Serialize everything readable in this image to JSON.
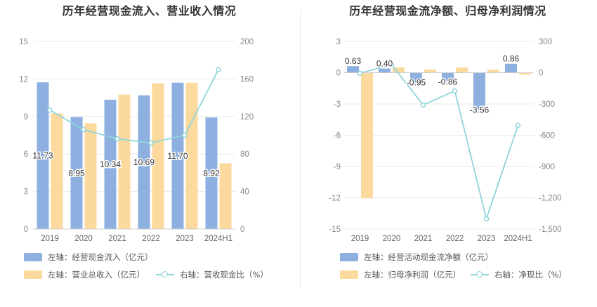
{
  "chart_data": [
    {
      "type": "bar",
      "title": "历年经营现金流入、营业收入情况",
      "categories": [
        "2019",
        "2020",
        "2021",
        "2022",
        "2023",
        "2024H1"
      ],
      "left_axis": {
        "min": 0,
        "max": 15,
        "ticks": [
          0,
          3,
          6,
          9,
          12,
          15
        ]
      },
      "right_axis": {
        "min": 0,
        "max": 200,
        "ticks": [
          0,
          40,
          80,
          120,
          160,
          200
        ]
      },
      "series": [
        {
          "name": "左轴：经营现金流入（亿元）",
          "axis": "left",
          "kind": "bar",
          "color": "#8eb0e0",
          "values": [
            11.73,
            8.95,
            10.34,
            10.69,
            11.7,
            8.92
          ],
          "labels": [
            "11.73",
            "8.95",
            "10.34",
            "10.69",
            "11.70",
            "8.92"
          ]
        },
        {
          "name": "左轴：营业总收入（亿元）",
          "axis": "left",
          "kind": "bar",
          "color": "#fcd99c",
          "values": [
            9.25,
            8.45,
            10.75,
            11.65,
            11.7,
            5.25
          ]
        },
        {
          "name": "右轴：营收现金比（%）",
          "axis": "right",
          "kind": "line",
          "color": "#8fd5dc",
          "values": [
            126.8,
            105.9,
            96.2,
            91.8,
            100.0,
            169.9
          ]
        }
      ],
      "legend": [
        {
          "label": "左轴：经营现金流入（亿元）",
          "kind": "bar",
          "color": "#8eb0e0"
        },
        {
          "label": "左轴：营业总收入（亿元）",
          "kind": "bar",
          "color": "#fcd99c"
        },
        {
          "label": "右轴：营收现金比（%）",
          "kind": "line",
          "color": "#8fd5dc"
        }
      ],
      "grid": true
    },
    {
      "type": "bar",
      "title": "历年经营现金流净额、归母净利润情况",
      "categories": [
        "2019",
        "2020",
        "2021",
        "2022",
        "2023",
        "2024H1"
      ],
      "left_axis": {
        "min": -15,
        "max": 3,
        "ticks": [
          -15,
          -12,
          -9,
          -6,
          -3,
          0,
          3
        ]
      },
      "right_axis": {
        "min": -1500,
        "max": 300,
        "ticks": [
          -1500,
          -1200,
          -900,
          -600,
          -300,
          0,
          300
        ],
        "tick_labels": [
          "-1,500",
          "-1,200",
          "-900",
          "-600",
          "-300",
          "0",
          "300"
        ]
      },
      "series": [
        {
          "name": "左轴：经营活动现金流净额（亿元）",
          "axis": "left",
          "kind": "bar",
          "color": "#8eb0e0",
          "values": [
            0.63,
            0.4,
            -0.95,
            -0.86,
            -3.56,
            0.86
          ],
          "labels": [
            "0.63",
            "0.40",
            "-0.95",
            "-0.86",
            "-3.56",
            "0.86"
          ]
        },
        {
          "name": "左轴：归母净利润（亿元）",
          "axis": "left",
          "kind": "bar",
          "color": "#fcd99c",
          "values": [
            -12.05,
            0.52,
            0.31,
            0.5,
            0.28,
            -0.18
          ]
        },
        {
          "name": "右轴：净现比（%）",
          "axis": "right",
          "kind": "line",
          "color": "#8fd5dc",
          "values": [
            -5.2,
            78.0,
            -310.0,
            -175.0,
            -1402.0,
            -505.0
          ]
        }
      ],
      "legend": [
        {
          "label": "左轴：经营活动现金流净额（亿元）",
          "kind": "bar",
          "color": "#8eb0e0"
        },
        {
          "label": "左轴：归母净利润（亿元）",
          "kind": "bar",
          "color": "#fcd99c"
        },
        {
          "label": "右轴：净现比（%）",
          "kind": "line",
          "color": "#8fd5dc"
        }
      ],
      "grid": true
    }
  ]
}
